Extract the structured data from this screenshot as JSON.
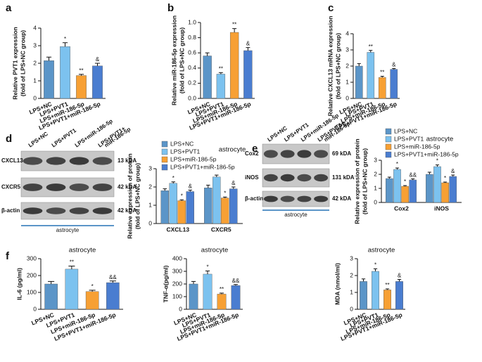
{
  "chart_data": [
    {
      "type": "bar",
      "panel": "a",
      "ylabel": [
        "Relative PVT1 expression",
        "(fold of LPS+NC group)"
      ],
      "categories": [
        "LPS+NC",
        "LPS+PVT1",
        "LPS+miR-186-5p",
        "LPS+PVT1+miR-186-5p"
      ],
      "values": [
        2.15,
        2.95,
        1.3,
        1.85
      ],
      "errors": [
        0.2,
        0.22,
        0.07,
        0.15
      ],
      "annotations": [
        null,
        "*",
        "**",
        "&"
      ],
      "colors": [
        "#5b95c8",
        "#7cc2ef",
        "#f7a034",
        "#4a7dd0"
      ],
      "ylim": [
        0,
        4
      ],
      "yticks": [
        0,
        1,
        2,
        3,
        4
      ]
    },
    {
      "type": "bar",
      "panel": "b",
      "ylabel": [
        "Relative miR-186-5p expression",
        "(fold of LPS+NC group)"
      ],
      "categories": [
        "LPS+NC",
        "LPS+PVT1",
        "LPS+miR-186-5p",
        "LPS+PVT1+miR-186-5p"
      ],
      "values": [
        0.56,
        0.32,
        0.87,
        0.63
      ],
      "errors": [
        0.04,
        0.02,
        0.05,
        0.04
      ],
      "annotations": [
        null,
        "**",
        "**",
        "&"
      ],
      "colors": [
        "#5b95c8",
        "#7cc2ef",
        "#f7a034",
        "#4a7dd0"
      ],
      "ylim": [
        0,
        1
      ],
      "yticks": [
        {
          "value": 0,
          "label": "0.0"
        },
        0.2,
        0.4,
        0.6,
        0.8,
        {
          "value": 1,
          "label": "1.0"
        }
      ]
    },
    {
      "type": "bar",
      "panel": "c",
      "ylabel": [
        "Relative CXCL13 mRNA expression",
        "(fold of LPS+NC group)"
      ],
      "categories": [
        "LPS+NC",
        "LPS+PVT1",
        "LPS+miR-186-5p",
        "LPS+PVT1+miR-186-5p"
      ],
      "values": [
        2.0,
        2.85,
        1.3,
        1.8
      ],
      "errors": [
        0.15,
        0.12,
        0.07,
        0.05
      ],
      "annotations": [
        null,
        "**",
        "**",
        "&"
      ],
      "colors": [
        "#5b95c8",
        "#7cc2ef",
        "#f7a034",
        "#4a7dd0"
      ],
      "ylim": [
        0,
        4
      ],
      "yticks": [
        0,
        1,
        2,
        3,
        4
      ]
    },
    {
      "type": "grouped_bar",
      "title": "astrocyte",
      "ylabel": [
        "Relative expression of protein",
        "(fold of LPS+NC group)"
      ],
      "categories": [
        "CXCL13",
        "CXCR5"
      ],
      "series": [
        {
          "name": "LPS+NC",
          "color": "#5b95c8",
          "values": [
            1.8,
            1.95
          ],
          "errors": [
            0.1,
            0.15
          ],
          "annotations": [
            null,
            null
          ]
        },
        {
          "name": "LPS+PVT1",
          "color": "#7cc2ef",
          "values": [
            2.2,
            2.55
          ],
          "errors": [
            0.08,
            0.1
          ],
          "annotations": [
            "*",
            null
          ]
        },
        {
          "name": "LPS+miR-186-5p",
          "color": "#f7a034",
          "values": [
            1.25,
            1.4
          ],
          "errors": [
            0.05,
            0.05
          ],
          "annotations": [
            "*",
            "*"
          ]
        },
        {
          "name": "LPS+PVT1+miR-186-5p",
          "color": "#4a7dd0",
          "values": [
            1.75,
            1.9
          ],
          "errors": [
            0.08,
            0.1
          ],
          "annotations": [
            "&",
            "&"
          ]
        }
      ],
      "ylim": [
        0,
        3
      ],
      "yticks": [
        0,
        1,
        2,
        3
      ]
    },
    {
      "type": "grouped_bar",
      "title": "astrocyte",
      "ylabel": [
        "Relative expression of protein",
        "(fold of LPS+NC group)"
      ],
      "categories": [
        "Cox2",
        "iNOS"
      ],
      "series": [
        {
          "name": "LPS+NC",
          "color": "#5b95c8",
          "values": [
            1.7,
            2.0
          ],
          "errors": [
            0.1,
            0.15
          ],
          "annotations": [
            null,
            null
          ]
        },
        {
          "name": "LPS+PVT1",
          "color": "#7cc2ef",
          "values": [
            2.35,
            2.55
          ],
          "errors": [
            0.1,
            0.12
          ],
          "annotations": [
            "*",
            "*"
          ]
        },
        {
          "name": "LPS+miR-186-5p",
          "color": "#f7a034",
          "values": [
            1.15,
            1.4
          ],
          "errors": [
            0.05,
            0.05
          ],
          "annotations": [
            "*",
            "*"
          ]
        },
        {
          "name": "LPS+PVT1+miR-186-5p",
          "color": "#4a7dd0",
          "values": [
            1.6,
            1.85
          ],
          "errors": [
            0.08,
            0.1
          ],
          "annotations": [
            "&&",
            "&"
          ]
        }
      ],
      "ylim": [
        0,
        3
      ],
      "yticks": [
        0,
        1,
        2,
        3
      ]
    },
    {
      "type": "bar",
      "panel": "f",
      "title": "astrocyte",
      "ylabel": [
        "IL-6 (pg/ml)"
      ],
      "categories": [
        "LPS+NC",
        "LPS+PVT1",
        "LPS+miR-186-5p",
        "LPS+PVT1+miR-186-5p"
      ],
      "values": [
        150,
        238,
        105,
        158
      ],
      "errors": [
        15,
        18,
        8,
        10
      ],
      "annotations": [
        null,
        "**",
        "*",
        "&&"
      ],
      "colors": [
        "#5b95c8",
        "#7cc2ef",
        "#f7a034",
        "#4a7dd0"
      ],
      "ylim": [
        0,
        300
      ],
      "yticks": [
        0,
        100,
        200,
        300
      ]
    },
    {
      "type": "bar",
      "title": "astrocyte",
      "ylabel": [
        "TNF-α(pg/ml)"
      ],
      "categories": [
        "LPS+NC",
        "LPS+PVT1",
        "LPS+miR-186-5p",
        "LPS+PVT1+miR-186-5p"
      ],
      "values": [
        200,
        278,
        120,
        188
      ],
      "errors": [
        20,
        25,
        8,
        8
      ],
      "annotations": [
        null,
        "*",
        "**",
        "&&"
      ],
      "colors": [
        "#5b95c8",
        "#7cc2ef",
        "#f7a034",
        "#4a7dd0"
      ],
      "ylim": [
        0,
        400
      ],
      "yticks": [
        0,
        100,
        200,
        300,
        400
      ]
    },
    {
      "type": "bar",
      "title": "astrocyte",
      "ylabel": [
        "MDA (nmol/ml)"
      ],
      "categories": [
        "LPS+NC",
        "LPS+PVT1",
        "LPS+miR-186-5p",
        "LPS+PVT1+miR-186-5p"
      ],
      "values": [
        1.65,
        2.25,
        1.15,
        1.65
      ],
      "errors": [
        0.15,
        0.15,
        0.06,
        0.12
      ],
      "annotations": [
        null,
        "*",
        "**",
        "&"
      ],
      "colors": [
        "#5b95c8",
        "#7cc2ef",
        "#f7a034",
        "#4a7dd0"
      ],
      "ylim": [
        0,
        3
      ],
      "yticks": [
        0,
        1,
        2,
        3
      ]
    }
  ],
  "blots": [
    {
      "panel": "d",
      "lanes": [
        [
          "LPS+NC"
        ],
        [
          "LPS+PVT1"
        ],
        [
          "LPS+miR-186-5p"
        ],
        [
          "LPS+PVT1+",
          "miR-186-5p"
        ]
      ],
      "rows": [
        {
          "protein": "CXCL13",
          "size": "13 kDA"
        },
        {
          "protein": "CXCR5",
          "size": "42 kDA"
        },
        {
          "protein": "β-actin",
          "size": "42 kDA"
        }
      ],
      "caption": "astrocyte"
    },
    {
      "panel": "e",
      "lanes": [
        [
          "LPS+NC"
        ],
        [
          "LPS+PVT1"
        ],
        [
          "LPS+miR-186-5p"
        ],
        [
          "LPS+PVT1+",
          "miR-186-5p"
        ]
      ],
      "rows": [
        {
          "protein": "Cox2",
          "size": "69 kDA"
        },
        {
          "protein": "iNOS",
          "size": "131 kDA"
        },
        {
          "protein": "β-actin",
          "size": "42 kDA"
        }
      ],
      "caption": "astrocyte"
    }
  ]
}
